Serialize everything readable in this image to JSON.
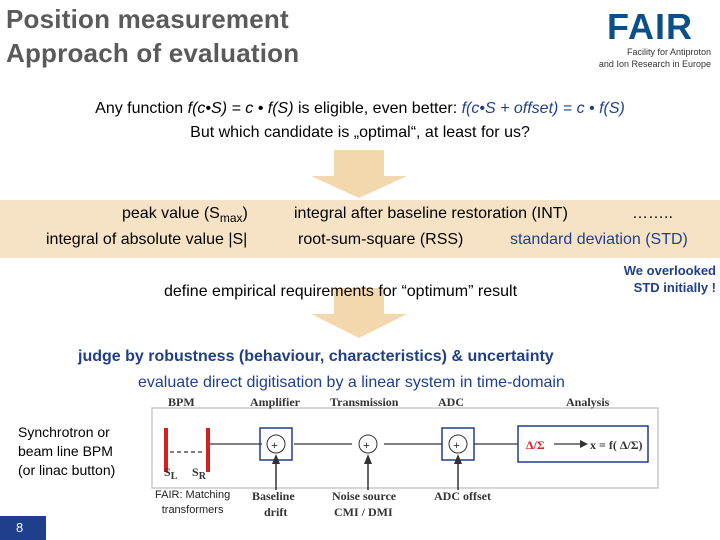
{
  "header": {
    "title_line1": "Position measurement",
    "title_line2": "Approach of evaluation",
    "logo_word": "FAIR",
    "logo_sub_line1": "Facility for Antiproton",
    "logo_sub_line2": "and Ion Research in Europe"
  },
  "intro": {
    "line1_a": "Any function ",
    "line1_b": "f(c•S) = c • f(S)",
    "line1_c": " is eligible, even better: ",
    "line1_d": "f(c•S + offset) = c • f(S)",
    "line2": "But which candidate is „optimal“, at least for us?"
  },
  "options": {
    "peak_a": "peak value (S",
    "peak_sub": "max",
    "peak_b": ")",
    "integral_abs": "integral of absolute value |S|",
    "integral_baseline": "integral after baseline restoration (INT)",
    "ellipsis": "……..",
    "rss": "root-sum-square (RSS)",
    "std": "standard deviation (STD)"
  },
  "requirements": "define empirical requirements for “optimum” result",
  "note": {
    "line1": "We overlooked",
    "line2": "STD initially !"
  },
  "judge": "judge by robustness (behaviour, characteristics) & uncertainty",
  "evaluate": "evaluate direct digitisation by a linear system in time-domain",
  "synchrotron": {
    "line1": "Synchrotron or",
    "line2": "beam line BPM",
    "line3": "(or linac button)"
  },
  "diagram": {
    "bpm": "BPM",
    "amplifier": "Amplifier",
    "transmission": "Transmission",
    "adc": "ADC",
    "analysis": "Analysis",
    "sl": "S",
    "sl_sub": "L",
    "sr": "S",
    "sr_sub": "R",
    "plus": "+",
    "delta_sigma": "Δ/Σ",
    "formula": "x = f( Δ/Σ)",
    "baseline_line1": "Baseline",
    "baseline_line2": "drift",
    "noise_line1": "Noise source",
    "noise_line2": "CMI / DMI",
    "adc_offset": "ADC offset",
    "fair_line1": "FAIR: Matching",
    "fair_line2": "transformers"
  },
  "page_number": "8",
  "colors": {
    "title_gray": "#5a5a5a",
    "accent_blue": "#1f3f8c",
    "band_beige": "#f6e3c6",
    "arrow_beige": "#f3d8ae",
    "diagram_red": "#d62020"
  }
}
